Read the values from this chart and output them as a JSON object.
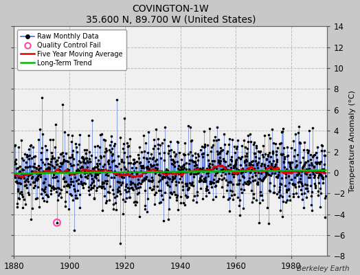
{
  "title": "COVINGTON-1W",
  "subtitle": "35.600 N, 89.700 W (United States)",
  "ylabel": "Temperature Anomaly (°C)",
  "watermark": "Berkeley Earth",
  "xmin": 1880,
  "xmax": 1993,
  "ymin": -8,
  "ymax": 14,
  "yticks": [
    -8,
    -6,
    -4,
    -2,
    0,
    2,
    4,
    6,
    8,
    10,
    12,
    14
  ],
  "xticks": [
    1880,
    1900,
    1920,
    1940,
    1960,
    1980
  ],
  "background_color": "#c8c8c8",
  "plot_bg_color": "#f0f0f0",
  "raw_line_color": "#4466dd",
  "raw_dot_color": "#000000",
  "moving_avg_color": "#dd0000",
  "trend_color": "#00bb00",
  "qc_fail_color": "#ff44aa",
  "qc_fail_x": 1895.5,
  "qc_fail_y": -4.8,
  "seed": 42
}
